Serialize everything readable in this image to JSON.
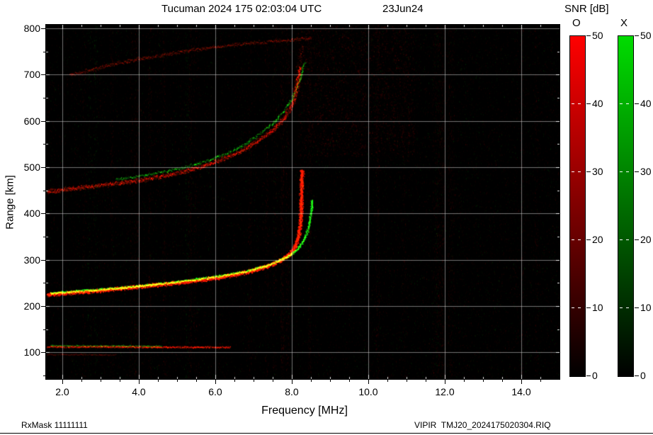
{
  "title": {
    "main": "Tucuman 2024 175 02:03:04 UTC",
    "date": "23Jun24"
  },
  "footer": {
    "left": "RxMask 11111111",
    "right": "VIPIR  TMJ20_2024175020304.RIQ"
  },
  "colorbar_panel": {
    "title": "SNR [dB]",
    "scale_db": [
      0,
      50
    ],
    "bars": [
      {
        "label": "O",
        "polarization": "O-mode",
        "color": "#ff0000",
        "ticks": [
          [
            50,
            "50"
          ],
          [
            40,
            "40"
          ],
          [
            30,
            "30"
          ],
          [
            20,
            "20"
          ],
          [
            10,
            "10"
          ],
          [
            0,
            "0"
          ]
        ]
      },
      {
        "label": "X",
        "polarization": "X-mode",
        "color": "#00dc00",
        "ticks": [
          [
            50,
            "50"
          ],
          [
            40,
            "40"
          ],
          [
            30,
            "30"
          ],
          [
            20,
            "20"
          ],
          [
            10,
            "10"
          ],
          [
            0,
            "0"
          ]
        ]
      }
    ]
  },
  "chart_data": {
    "type": "heatmap",
    "title": "Tucuman 2024 175 02:03:04 UTC",
    "date_label": "23Jun24",
    "xlabel": "Frequency [MHz]",
    "ylabel": "Range [km]",
    "xlim": [
      1.575,
      15.0
    ],
    "ylim": [
      42,
      808
    ],
    "xticks": [
      [
        2,
        "2.0"
      ],
      [
        4,
        "4.0"
      ],
      [
        6,
        "6.0"
      ],
      [
        8,
        "8.0"
      ],
      [
        10,
        "10.0"
      ],
      [
        12,
        "12.0"
      ],
      [
        14,
        "14.0"
      ]
    ],
    "yticks": [
      [
        100,
        "100"
      ],
      [
        200,
        "200"
      ],
      [
        300,
        "300"
      ],
      [
        400,
        "400"
      ],
      [
        500,
        "500"
      ],
      [
        600,
        "600"
      ],
      [
        700,
        "700"
      ],
      [
        800,
        "800"
      ]
    ],
    "grid": true,
    "background": "#000000",
    "snr_scale_db": [
      0,
      50
    ],
    "critical_frequencies": {
      "foF2_MHz": 8.25,
      "fxF2_MHz": 8.55
    },
    "traces": [
      {
        "name": "F2-trace-O",
        "mode": "O",
        "width": 3.5,
        "density": 6,
        "alpha": 0.85,
        "points": [
          [
            1.6,
            224
          ],
          [
            2.0,
            227
          ],
          [
            2.6,
            231
          ],
          [
            3.2,
            235
          ],
          [
            3.8,
            240
          ],
          [
            4.4,
            245
          ],
          [
            5.0,
            250
          ],
          [
            5.6,
            256
          ],
          [
            6.1,
            262
          ],
          [
            6.6,
            269
          ],
          [
            7.0,
            277
          ],
          [
            7.4,
            287
          ],
          [
            7.7,
            298
          ],
          [
            7.95,
            312
          ],
          [
            8.1,
            330
          ],
          [
            8.18,
            352
          ],
          [
            8.22,
            380
          ],
          [
            8.25,
            420
          ],
          [
            8.26,
            460
          ],
          [
            8.27,
            495
          ]
        ]
      },
      {
        "name": "F2-trace-X",
        "mode": "X",
        "width": 2.2,
        "density": 3,
        "alpha": 0.8,
        "points": [
          [
            1.7,
            228
          ],
          [
            2.4,
            232
          ],
          [
            3.2,
            237
          ],
          [
            4.0,
            243
          ],
          [
            4.8,
            250
          ],
          [
            5.6,
            259
          ],
          [
            6.2,
            266
          ],
          [
            6.8,
            275
          ],
          [
            7.3,
            286
          ],
          [
            7.7,
            299
          ],
          [
            8.0,
            312
          ],
          [
            8.2,
            328
          ],
          [
            8.35,
            348
          ],
          [
            8.45,
            372
          ],
          [
            8.5,
            400
          ],
          [
            8.53,
            430
          ]
        ]
      },
      {
        "name": "F2-second-hop-O",
        "mode": "O",
        "width": 4,
        "density": 3.5,
        "alpha": 0.5,
        "points": [
          [
            1.6,
            447
          ],
          [
            2.2,
            453
          ],
          [
            2.8,
            459
          ],
          [
            3.4,
            465
          ],
          [
            4.0,
            472
          ],
          [
            4.6,
            480
          ],
          [
            5.2,
            491
          ],
          [
            5.7,
            503
          ],
          [
            6.2,
            518
          ],
          [
            6.7,
            536
          ],
          [
            7.1,
            556
          ],
          [
            7.5,
            580
          ],
          [
            7.8,
            606
          ],
          [
            8.0,
            634
          ],
          [
            8.1,
            662
          ],
          [
            8.17,
            692
          ],
          [
            8.21,
            718
          ]
        ]
      },
      {
        "name": "F2-second-hop-spread-O",
        "mode": "O",
        "width": 5,
        "density": 1.2,
        "alpha": 0.3,
        "points": [
          [
            8.05,
            660
          ],
          [
            8.15,
            700
          ],
          [
            8.22,
            740
          ],
          [
            8.26,
            762
          ]
        ]
      },
      {
        "name": "F2-second-hop-X",
        "mode": "X",
        "width": 2.5,
        "density": 1.4,
        "alpha": 0.55,
        "points": [
          [
            3.4,
            474
          ],
          [
            4.0,
            481
          ],
          [
            4.6,
            490
          ],
          [
            5.2,
            500
          ],
          [
            5.8,
            514
          ],
          [
            6.3,
            530
          ],
          [
            6.8,
            551
          ],
          [
            7.2,
            574
          ],
          [
            7.6,
            602
          ],
          [
            7.9,
            634
          ],
          [
            8.1,
            664
          ],
          [
            8.25,
            700
          ],
          [
            8.33,
            728
          ]
        ]
      },
      {
        "name": "upper-diagonal-echo-O",
        "mode": "O",
        "width": 3.5,
        "density": 2,
        "alpha": 0.32,
        "points": [
          [
            2.2,
            700
          ],
          [
            2.8,
            712
          ],
          [
            3.4,
            724
          ],
          [
            4.0,
            734
          ],
          [
            4.6,
            743
          ],
          [
            5.2,
            751
          ],
          [
            5.8,
            758
          ],
          [
            6.4,
            764
          ],
          [
            7.0,
            769
          ],
          [
            7.6,
            773
          ],
          [
            8.2,
            777
          ],
          [
            8.5,
            779
          ]
        ]
      },
      {
        "name": "E-region-echo-O",
        "mode": "O",
        "width": 1.6,
        "density": 2.5,
        "alpha": 0.5,
        "points": [
          [
            1.6,
            112
          ],
          [
            3.0,
            112
          ],
          [
            4.5,
            111
          ],
          [
            6.4,
            111
          ]
        ]
      },
      {
        "name": "E-region-echo-X",
        "mode": "X",
        "width": 1.4,
        "density": 1,
        "alpha": 0.5,
        "points": [
          [
            1.7,
            114
          ],
          [
            3.0,
            114
          ],
          [
            4.6,
            113
          ]
        ]
      },
      {
        "name": "E-region-lower-echo-O",
        "mode": "O",
        "width": 1.3,
        "density": 1,
        "alpha": 0.28,
        "points": [
          [
            1.6,
            95
          ],
          [
            2.6,
            95
          ],
          [
            3.4,
            94
          ]
        ]
      }
    ]
  }
}
